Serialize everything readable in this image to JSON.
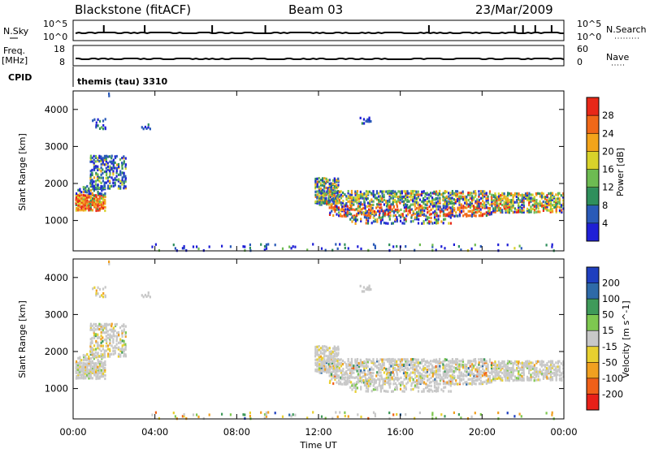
{
  "header": {
    "station": "Blackstone (fitACF)",
    "beam": "Beam 03",
    "date": "23/Mar/2009"
  },
  "status_panels": {
    "nsky_label": "N.Sky",
    "nsky_ticks": [
      "10^5",
      "10^0"
    ],
    "nsearch_label": "N.Search",
    "nsearch_ticks": [
      "10^5",
      "10^0"
    ],
    "freq_label": "Freq.",
    "freq_unit": "[MHz]",
    "freq_ticks": [
      "18",
      "8"
    ],
    "nave_label": "Nave",
    "nave_ticks": [
      "60",
      "0"
    ],
    "cpid_label": "CPID",
    "cpid_value": "themis (tau) 3310"
  },
  "x_axis": {
    "label": "Time UT",
    "ticks": [
      "00:00",
      "04:00",
      "08:00",
      "12:00",
      "16:00",
      "20:00",
      "00:00"
    ]
  },
  "power_panel": {
    "ylabel": "Slant Range [km]",
    "yticks": [
      "4000",
      "3000",
      "2000",
      "1000"
    ],
    "colorbar_label": "Power [dB]",
    "colorbar_ticks": [
      "28",
      "24",
      "20",
      "16",
      "12",
      "8",
      "4"
    ],
    "colors": [
      "#1f1fd6",
      "#2a5ab8",
      "#2f8f5c",
      "#6dbb52",
      "#d8d22a",
      "#f3a41a",
      "#f06818",
      "#e82818"
    ]
  },
  "velocity_panel": {
    "ylabel": "Slant Range [km]",
    "yticks": [
      "4000",
      "3000",
      "2000",
      "1000"
    ],
    "colorbar_label": "Velocity [m s^-1]",
    "colorbar_ticks": [
      "200",
      "100",
      "50",
      "15",
      "-15",
      "-50",
      "-100",
      "-200"
    ],
    "colors": [
      "#1f3fbf",
      "#2e6aa8",
      "#3f9a5a",
      "#7ec850",
      "#c8c8c8",
      "#e8d030",
      "#f0a020",
      "#f06018",
      "#e82018"
    ]
  },
  "chart_data": {
    "type": "heatmap",
    "x_range_hours": [
      0,
      24
    ],
    "y_range_km": [
      180,
      4500
    ],
    "power_scatter_regions": [
      {
        "t_start_h": 0.1,
        "t_end_h": 2.0,
        "range_start_km": 1300,
        "range_end_km": 2000,
        "level": "high"
      },
      {
        "t_start_h": 1.0,
        "t_end_h": 2.6,
        "range_start_km": 1900,
        "range_end_km": 2800,
        "level": "medium"
      },
      {
        "t_start_h": 3.2,
        "t_end_h": 23.8,
        "range_start_km": 220,
        "range_end_km": 450,
        "level": "low"
      },
      {
        "t_start_h": 11.8,
        "t_end_h": 20.5,
        "range_start_km": 1000,
        "range_end_km": 2200,
        "level": "medium"
      },
      {
        "t_start_h": 20.5,
        "t_end_h": 24.0,
        "range_start_km": 1200,
        "range_end_km": 1800,
        "level": "medium"
      }
    ]
  }
}
